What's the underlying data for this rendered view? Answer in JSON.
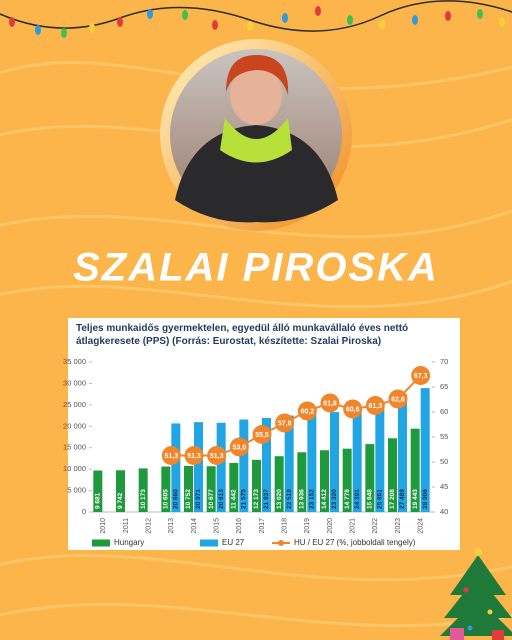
{
  "name": "SZALAI PIROSKA",
  "chart_data": {
    "type": "bar",
    "title": "Teljes munkaidős gyermektelen, egyedül álló munkavállaló éves nettó átlagkeresete (PPS) (Forrás: Eurostat, készítette: Szalai Piroska)",
    "categories": [
      "2010",
      "2011",
      "2012",
      "2013",
      "2014",
      "2015",
      "2016",
      "2017",
      "2018",
      "2019",
      "2020",
      "2021",
      "2022",
      "2023",
      "2024"
    ],
    "series": [
      {
        "name": "Hungary",
        "color": "#1e9a3c",
        "type": "bar",
        "values": [
          9681,
          9742,
          10173,
          10605,
          10752,
          10677,
          11442,
          12173,
          13020,
          13936,
          14412,
          14778,
          15848,
          17208,
          19443
        ],
        "value_labels": [
          "9 681",
          "9 742",
          "10 173",
          "10 605",
          "10 752",
          "10 677",
          "11 442",
          "12 173",
          "13 020",
          "13 936",
          "14 412",
          "14 778",
          "15 848",
          "17 208",
          "19 443"
        ]
      },
      {
        "name": "EU  27",
        "color": "#22a6e3",
        "type": "bar",
        "values": [
          null,
          null,
          null,
          20660,
          20971,
          20813,
          21575,
          21937,
          22519,
          23152,
          23320,
          24391,
          25861,
          27489,
          28906
        ],
        "value_labels": [
          null,
          null,
          null,
          "20 660",
          "20 971",
          "20 813",
          "21 575",
          "21 937",
          "22 519",
          "23 152",
          "23 320",
          "24 391",
          "25 861",
          "27 489",
          "28 906"
        ]
      },
      {
        "name": "HU / EU  27 (%, jobboldali tengely)",
        "color": "#f0852a",
        "type": "line",
        "axis": "y2",
        "values": [
          null,
          null,
          null,
          51.3,
          51.3,
          51.3,
          53.0,
          55.5,
          57.8,
          60.2,
          61.8,
          60.6,
          61.3,
          62.6,
          67.3
        ],
        "value_labels": [
          null,
          null,
          null,
          "51,3",
          "51,3",
          "51,3",
          "53,0",
          "55,5",
          "57,8",
          "60,2",
          "61,8",
          "60,6",
          "61,3",
          "62,6",
          "67,3"
        ]
      }
    ],
    "ylim": [
      0,
      35000
    ],
    "yticks": [
      0,
      {
        "value": 5000,
        "label": "5 000"
      },
      {
        "value": 10000,
        "label": "10 000"
      },
      {
        "value": 15000,
        "label": "15 000"
      },
      {
        "value": 20000,
        "label": "20 000"
      },
      {
        "value": 25000,
        "label": "25 000"
      },
      {
        "value": 30000,
        "label": "30 000"
      },
      {
        "value": 35000,
        "label": "35 000"
      }
    ],
    "y2lim": [
      40,
      70
    ],
    "y2ticks": [
      40,
      45,
      50,
      55,
      60,
      65,
      70
    ]
  }
}
